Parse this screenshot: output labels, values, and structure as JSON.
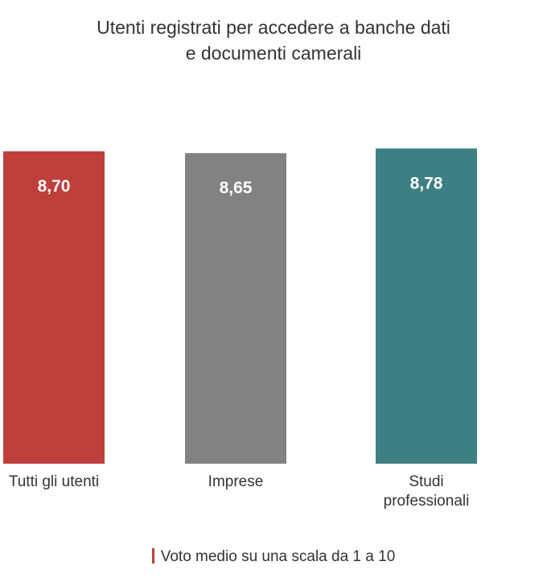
{
  "chart_data": {
    "type": "bar",
    "title_lines": [
      "Utenti registrati per accedere a banche dati",
      "e documenti camerali"
    ],
    "categories": [
      "Tutti gli utenti",
      "Imprese",
      "Studi professionali"
    ],
    "category_lines": [
      [
        "Tutti gli utenti"
      ],
      [
        "Imprese"
      ],
      [
        "Studi",
        "professionali"
      ]
    ],
    "values": [
      8.7,
      8.65,
      8.78
    ],
    "value_labels": [
      "8,70",
      "8,65",
      "8,78"
    ],
    "colors": [
      "#bf3f3b",
      "#828282",
      "#3e7f83"
    ],
    "legend": "Voto medio su una scala da 1 a 10",
    "legend_color": "#bf3f3b"
  }
}
